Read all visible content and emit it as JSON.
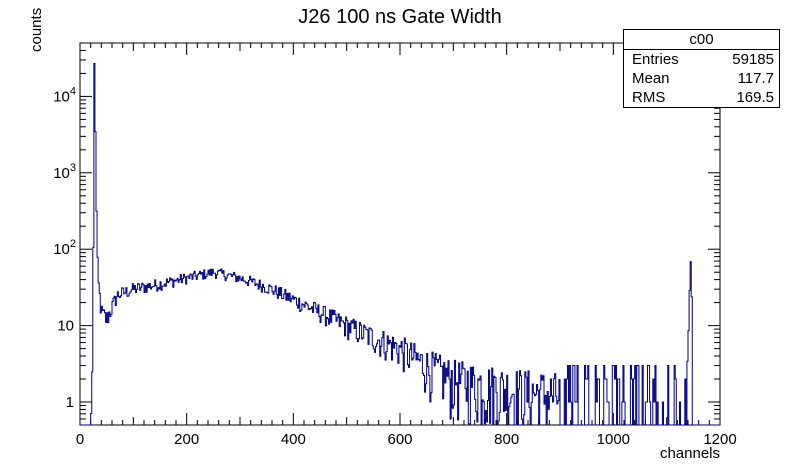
{
  "chart_data": {
    "type": "histogram",
    "title": "J26 100 ns Gate Width",
    "xlabel": "channels",
    "ylabel": "counts",
    "xlim": [
      0,
      1200
    ],
    "ylim": [
      0.5,
      50000
    ],
    "y_scale": "log",
    "x_ticks": [
      0,
      200,
      400,
      600,
      800,
      1000,
      1200
    ],
    "y_ticks": [
      {
        "value": 1,
        "label": "1"
      },
      {
        "value": 10,
        "label": "10"
      },
      {
        "value": 100,
        "label": "10",
        "exp": "2"
      },
      {
        "value": 1000,
        "label": "10",
        "exp": "3"
      },
      {
        "value": 10000,
        "label": "10",
        "exp": "4"
      }
    ],
    "line_color": "#000080",
    "bin_width": 2,
    "features": {
      "pedestal_peak": {
        "x": 27,
        "y": 27000
      },
      "broad_bump_peak": {
        "x": 250,
        "y": 50
      },
      "end_peak": {
        "x": 1145,
        "y": 70
      }
    },
    "profile": [
      [
        0,
        0.5
      ],
      [
        20,
        0.5
      ],
      [
        22,
        1
      ],
      [
        24,
        4
      ],
      [
        26,
        3000
      ],
      [
        27,
        27000
      ],
      [
        28,
        15000
      ],
      [
        30,
        800
      ],
      [
        32,
        120
      ],
      [
        34,
        40
      ],
      [
        40,
        15
      ],
      [
        50,
        12
      ],
      [
        70,
        25
      ],
      [
        100,
        30
      ],
      [
        150,
        35
      ],
      [
        200,
        42
      ],
      [
        250,
        50
      ],
      [
        300,
        42
      ],
      [
        350,
        32
      ],
      [
        400,
        22
      ],
      [
        450,
        15
      ],
      [
        500,
        10
      ],
      [
        550,
        7
      ],
      [
        600,
        5
      ],
      [
        650,
        3
      ],
      [
        700,
        2
      ],
      [
        800,
        1.5
      ],
      [
        900,
        1.2
      ],
      [
        1000,
        1
      ],
      [
        1100,
        1
      ],
      [
        1138,
        1
      ],
      [
        1140,
        4
      ],
      [
        1143,
        30
      ],
      [
        1145,
        70
      ],
      [
        1147,
        20
      ],
      [
        1149,
        0.5
      ],
      [
        1200,
        0.5
      ]
    ]
  },
  "stats_box": {
    "title": "c00",
    "rows": [
      {
        "label": "Entries",
        "value": "59185"
      },
      {
        "label": "Mean",
        "value": "117.7"
      },
      {
        "label": "RMS",
        "value": "169.5"
      }
    ]
  }
}
